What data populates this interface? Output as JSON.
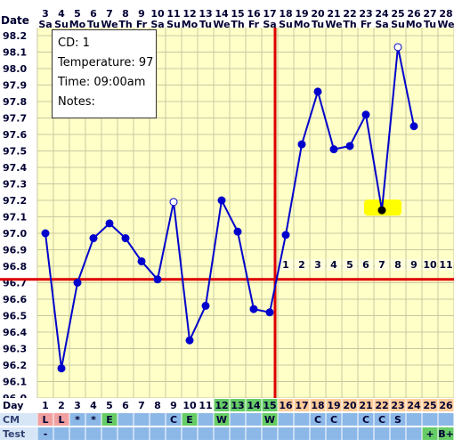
{
  "colors": {
    "plot_bg": "#ffffc8",
    "grid": "#c8c8a0",
    "line": "#0000cc",
    "coverline": "#dd0000",
    "highlight": "#ffff00",
    "label_text": "#000033",
    "dpo_bg": "#ffffe0",
    "bottom_row_blue": "#8cb8e8",
    "bottom_row_pink": "#f0a0a0",
    "bottom_row_green": "#66cc66",
    "bottom_row_orange": "#ffcc99",
    "bottom_row_white": "#ffffff"
  },
  "tooltip": {
    "cd_line": "CD: 1",
    "temp_line": "Temperature: 97",
    "time_line": "Time: 09:00am",
    "notes_line": "Notes:"
  },
  "chart_data": {
    "type": "line",
    "ylabel": "Date",
    "ylim": [
      96.0,
      98.2
    ],
    "yticks": [
      "98.2",
      "98.1",
      "98.0",
      "97.9",
      "97.8",
      "97.7",
      "97.6",
      "97.5",
      "97.4",
      "97.3",
      "97.2",
      "97.1",
      "97.0",
      "96.9",
      "96.8",
      "96.7",
      "96.6",
      "96.5",
      "96.4",
      "96.3",
      "96.2",
      "96.1",
      "96.0"
    ],
    "dates": [
      "3",
      "4",
      "5",
      "6",
      "7",
      "8",
      "9",
      "10",
      "11",
      "12",
      "13",
      "14",
      "15",
      "16",
      "17",
      "18",
      "19",
      "20",
      "21",
      "22",
      "23",
      "24",
      "25",
      "26",
      "27",
      "28"
    ],
    "weekdays": [
      "Sa",
      "Su",
      "Mo",
      "Tu",
      "We",
      "Th",
      "Fr",
      "Sa",
      "Su",
      "Mo",
      "Tu",
      "We",
      "Th",
      "Fr",
      "Sa",
      "Su",
      "Mo",
      "Tu",
      "We",
      "Th",
      "Fr",
      "Sa",
      "Su",
      "Mo",
      "Tu",
      "We"
    ],
    "cycle_days": [
      "1",
      "2",
      "3",
      "4",
      "5",
      "6",
      "7",
      "8",
      "9",
      "10",
      "11",
      "12",
      "13",
      "14",
      "15",
      "16",
      "17",
      "18",
      "19",
      "20",
      "21",
      "22",
      "23",
      "24",
      "25",
      "26"
    ],
    "temperatures": [
      97.0,
      96.18,
      96.7,
      96.97,
      97.06,
      96.97,
      96.83,
      96.72,
      97.19,
      96.35,
      96.56,
      97.2,
      97.01,
      96.54,
      96.52,
      96.99,
      97.54,
      97.86,
      97.51,
      97.53,
      97.72,
      97.14,
      98.13,
      97.65
    ],
    "open_markers": [
      8,
      22
    ],
    "open_marker_excluded": [
      14
    ],
    "highlight_index": 21,
    "coverline": 96.72,
    "ovulation_day_index": 14,
    "dpo_labels": [
      "1",
      "2",
      "3",
      "4",
      "5",
      "6",
      "7",
      "8",
      "9",
      "10",
      "11"
    ],
    "row_labels": {
      "day": "Day",
      "cm": "CM",
      "test": "Test"
    },
    "cm_values": [
      "L",
      "L",
      "*",
      "*",
      "E",
      "",
      "",
      "",
      "C",
      "E",
      "",
      "W",
      "",
      "",
      "W",
      "",
      "",
      "C",
      "C",
      "",
      "C",
      "C",
      "S",
      "",
      "",
      ""
    ],
    "test_values": [
      "-",
      "",
      "",
      "",
      "",
      "",
      "",
      "",
      "",
      "",
      "",
      "",
      "",
      "",
      "",
      "",
      "",
      "",
      "",
      "",
      "",
      "",
      "",
      "",
      "+",
      "B+"
    ],
    "day_colors": [
      "white",
      "white",
      "white",
      "white",
      "white",
      "white",
      "white",
      "white",
      "white",
      "white",
      "white",
      "green",
      "green",
      "green",
      "green",
      "orange",
      "orange",
      "orange",
      "orange",
      "orange",
      "orange",
      "orange",
      "orange",
      "orange",
      "orange",
      "orange"
    ],
    "cm_colors": [
      "pink",
      "pink",
      "blue",
      "blue",
      "green",
      "blue",
      "blue",
      "blue",
      "blue",
      "green",
      "blue",
      "green",
      "blue",
      "blue",
      "green",
      "blue",
      "blue",
      "blue",
      "blue",
      "blue",
      "blue",
      "blue",
      "blue",
      "blue",
      "blue",
      "blue"
    ]
  }
}
